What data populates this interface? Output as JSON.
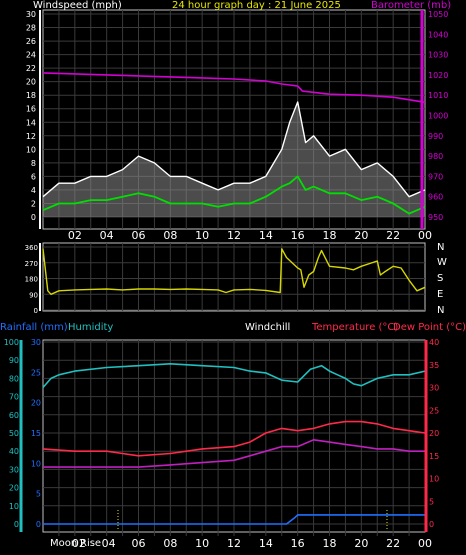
{
  "header": {
    "windspeed_label": "Windspeed (mph)",
    "title": "24 hour graph day : 21 June 2025",
    "barometer_label": "Barometer (mb)"
  },
  "mid": {
    "compass": [
      "N",
      "W",
      "S",
      "E",
      "N"
    ]
  },
  "bottom": {
    "rainfall_label": "Rainfall (mm)",
    "humidity_label": "Humidity",
    "windchill_label": "Windchill",
    "temperature_label": "Temperature (°C)",
    "dewpoint_label": "Dew Point (°C)",
    "moon_label": "Moon",
    "rise_label": "Rise"
  },
  "colors": {
    "wind_avg": "#00e000",
    "wind_gust": "#ffffff",
    "wind_gust_fill": "#8a8a8a",
    "barometer": "#d400d4",
    "direction": "#d6d600",
    "humidity": "#20c0c0",
    "temperature": "#ff2a4a",
    "dewpoint": "#c020c0",
    "rainfall": "#2070ff",
    "grid": "#3a3a3a",
    "frame": "#c0c0c0"
  },
  "chart_data": [
    {
      "type": "line",
      "name": "wind-barometer",
      "x_tick_labels": [
        "02",
        "04",
        "06",
        "08",
        "10",
        "12",
        "14",
        "16",
        "18",
        "20",
        "22",
        "00"
      ],
      "x_range_hours": [
        0,
        24
      ],
      "left_axis": {
        "ticks": [
          0,
          2,
          4,
          6,
          8,
          10,
          12,
          14,
          16,
          18,
          20,
          22,
          24,
          26,
          28,
          30
        ],
        "range": [
          0,
          30
        ]
      },
      "right_axis": {
        "ticks": [
          950,
          960,
          970,
          980,
          990,
          1000,
          1010,
          1020,
          1030,
          1040,
          1050
        ],
        "range": [
          950,
          1050
        ]
      },
      "series": [
        {
          "name": "Windspeed (mph)",
          "axis": "left",
          "x": [
            0,
            1,
            2,
            3,
            4,
            5,
            6,
            7,
            8,
            9,
            10,
            11,
            12,
            13,
            14,
            15,
            15.5,
            16,
            16.5,
            17,
            18,
            19,
            20,
            21,
            22,
            23,
            24
          ],
          "values": [
            1,
            2,
            2,
            2.5,
            2.5,
            3,
            3.5,
            3,
            2,
            2,
            2,
            1.5,
            2,
            2,
            3,
            4.5,
            5,
            6,
            4,
            4.5,
            3.5,
            3.5,
            2.5,
            3,
            2,
            0.5,
            1.5
          ]
        },
        {
          "name": "Gust",
          "axis": "left",
          "x": [
            0,
            1,
            2,
            3,
            4,
            5,
            6,
            7,
            8,
            9,
            10,
            11,
            12,
            13,
            14,
            15,
            15.5,
            16,
            16.5,
            17,
            18,
            19,
            20,
            21,
            22,
            23,
            24
          ],
          "values": [
            3,
            5,
            5,
            6,
            6,
            7,
            9,
            8,
            6,
            6,
            5,
            4,
            5,
            5,
            6,
            10,
            14,
            17,
            11,
            12,
            9,
            10,
            7,
            8,
            6,
            3,
            4
          ]
        },
        {
          "name": "Barometer (mb)",
          "axis": "right",
          "x": [
            0,
            2,
            4,
            6,
            8,
            10,
            12,
            14,
            15,
            15.5,
            16,
            16.3,
            18,
            20,
            22,
            24
          ],
          "values": [
            1021,
            1020.5,
            1020,
            1019.5,
            1019,
            1018.5,
            1018,
            1017,
            1015.5,
            1015,
            1014.5,
            1012,
            1010.5,
            1010,
            1009,
            1006.5
          ]
        }
      ]
    },
    {
      "type": "line",
      "name": "wind-direction",
      "x_range_hours": [
        0,
        24
      ],
      "y_axis": {
        "ticks": [
          0,
          90,
          180,
          270,
          360
        ],
        "range": [
          0,
          360
        ]
      },
      "series": [
        {
          "name": "Direction",
          "x": [
            0,
            0.2,
            0.3,
            0.5,
            1,
            2,
            3,
            4,
            5,
            6,
            7,
            8,
            9,
            10,
            11,
            11.5,
            12,
            13,
            14,
            14.9,
            15,
            15.3,
            16,
            16.2,
            16.4,
            16.7,
            17,
            17.3,
            17.5,
            18,
            19,
            19.5,
            20,
            21,
            21.2,
            21.5,
            22,
            22.5,
            23,
            23.5,
            24
          ],
          "values": [
            350,
            190,
            110,
            90,
            110,
            115,
            118,
            120,
            115,
            120,
            120,
            118,
            120,
            118,
            115,
            100,
            115,
            118,
            112,
            100,
            350,
            300,
            240,
            230,
            130,
            200,
            220,
            300,
            340,
            250,
            240,
            230,
            250,
            280,
            200,
            220,
            250,
            240,
            170,
            110,
            130
          ]
        }
      ]
    },
    {
      "type": "line",
      "name": "temperature-humidity",
      "x_tick_labels": [
        "02",
        "04",
        "06",
        "08",
        "10",
        "12",
        "14",
        "16",
        "18",
        "20",
        "22",
        "00"
      ],
      "x_range_hours": [
        0,
        24
      ],
      "left_axis": {
        "ticks": [
          0,
          10,
          20,
          30,
          40,
          50,
          60,
          70,
          80,
          90,
          100
        ],
        "range": [
          0,
          100
        ]
      },
      "rain_axis": {
        "ticks": [
          0,
          5,
          10,
          15,
          20,
          25,
          30
        ],
        "range": [
          0,
          30
        ]
      },
      "right_axis": {
        "ticks": [
          0,
          5,
          10,
          15,
          20,
          25,
          30,
          35,
          40
        ],
        "range": [
          0,
          40
        ]
      },
      "series": [
        {
          "name": "Humidity",
          "axis": "left",
          "x": [
            0,
            0.5,
            1,
            2,
            4,
            6,
            8,
            10,
            12,
            13,
            14,
            15,
            16,
            16.8,
            17.5,
            18,
            18.5,
            19,
            19.5,
            20,
            21,
            22,
            23,
            24
          ],
          "values": [
            75,
            80,
            82,
            84,
            86,
            87,
            88,
            87,
            86,
            84,
            83,
            79,
            78,
            85,
            87,
            84,
            82,
            80,
            77,
            76,
            80,
            82,
            82,
            84
          ]
        },
        {
          "name": "Temperature (°C)",
          "axis": "right",
          "x": [
            0,
            2,
            4,
            5,
            6,
            8,
            10,
            12,
            13,
            14,
            15,
            16,
            17,
            18,
            19,
            20,
            21,
            22,
            23,
            24
          ],
          "values": [
            16.5,
            16,
            16,
            15.5,
            15,
            15.5,
            16.5,
            17,
            18,
            20,
            21,
            20.5,
            21,
            22,
            22.5,
            22.5,
            22,
            21,
            20.5,
            20
          ]
        },
        {
          "name": "Dew Point (°C)",
          "axis": "right",
          "x": [
            0,
            2,
            4,
            6,
            8,
            10,
            12,
            13,
            14,
            15,
            16,
            17,
            18,
            19,
            20,
            21,
            22,
            23,
            24
          ],
          "values": [
            12.5,
            12.5,
            12.5,
            12.5,
            13,
            13.5,
            14,
            15,
            16,
            17,
            17,
            18.5,
            18,
            17.5,
            17,
            16.5,
            16.5,
            16,
            16
          ]
        },
        {
          "name": "Rainfall (mm)",
          "axis": "rain",
          "x": [
            0,
            15.3,
            15.8,
            16,
            24
          ],
          "values": [
            0,
            0,
            1,
            1.5,
            1.5
          ]
        }
      ]
    }
  ]
}
